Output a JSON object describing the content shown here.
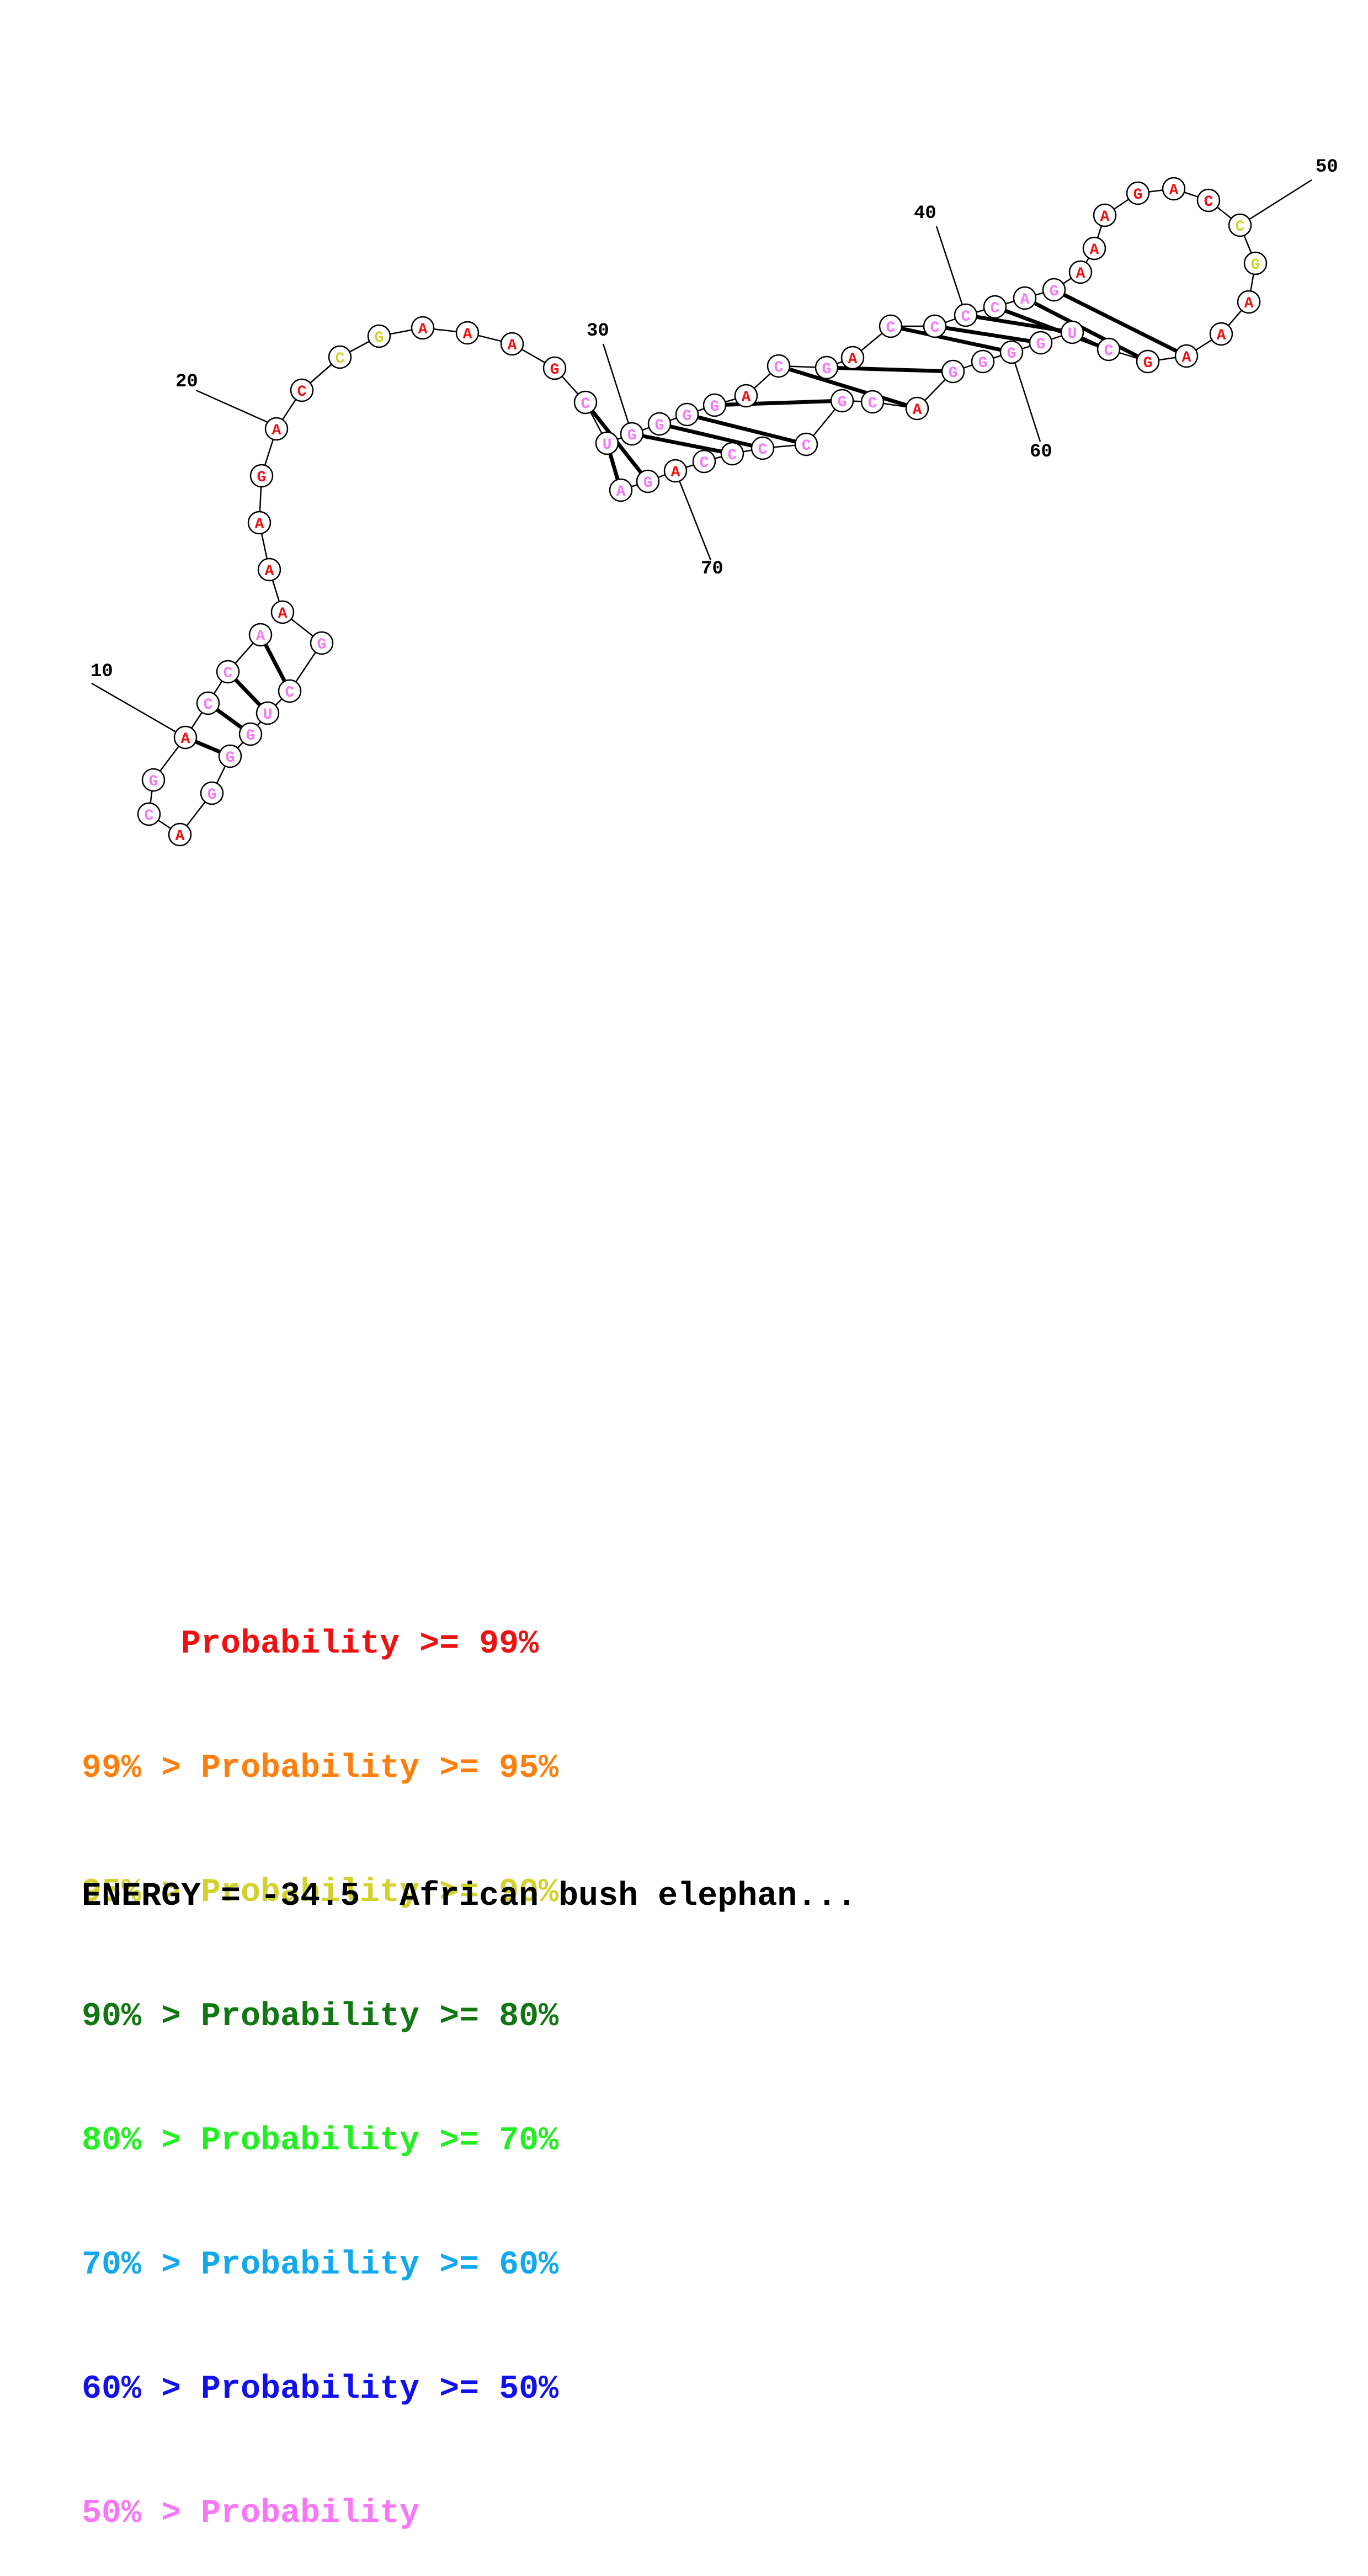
{
  "structure": {
    "nucleotides": [
      {
        "n": 7,
        "base": "A",
        "color": "#f777f7"
      },
      {
        "n": 8,
        "base": "C",
        "color": "#f777f7"
      },
      {
        "n": 9,
        "base": "C",
        "color": "#f777f7"
      },
      {
        "n": 10,
        "base": "A",
        "color": "#ee1111"
      },
      {
        "n": 11,
        "base": "G",
        "color": "#f777f7"
      },
      {
        "n": 12,
        "base": "C",
        "color": "#f777f7"
      },
      {
        "n": 13,
        "base": "A",
        "color": "#ee1111"
      },
      {
        "n": 14,
        "base": "G",
        "color": "#f777f7"
      },
      {
        "n": 15,
        "base": "G",
        "color": "#f777f7"
      },
      {
        "n": 16,
        "base": "G",
        "color": "#f777f7"
      },
      {
        "n": 17,
        "base": "U",
        "color": "#f777f7"
      },
      {
        "n": 18,
        "base": "C",
        "color": "#f777f7"
      },
      {
        "n": 19,
        "base": "G",
        "color": "#f777f7"
      },
      {
        "n": 20,
        "base": "A",
        "color": "#ee1111"
      },
      {
        "n": 21,
        "base": "A",
        "color": "#ee1111"
      },
      {
        "n": 22,
        "base": "A",
        "color": "#ee1111"
      },
      {
        "n": 23,
        "base": "G",
        "color": "#ee1111"
      },
      {
        "n": 24,
        "base": "A",
        "color": "#ee1111"
      },
      {
        "n": 25,
        "base": "C",
        "color": "#ee1111"
      },
      {
        "n": 26,
        "base": "C",
        "color": "#d2d22a"
      },
      {
        "n": 27,
        "base": "G",
        "color": "#d2d22a"
      },
      {
        "n": 28,
        "base": "A",
        "color": "#ee1111"
      },
      {
        "n": 29,
        "base": "A",
        "color": "#ee1111"
      },
      {
        "n": 30,
        "base": "A",
        "color": "#ee1111"
      },
      {
        "n": 31,
        "base": "G",
        "color": "#ee1111"
      },
      {
        "n": 32,
        "base": "C",
        "color": "#f777f7"
      },
      {
        "n": 33,
        "base": "U",
        "color": "#f777f7"
      },
      {
        "n": 34,
        "base": "G",
        "color": "#f777f7"
      },
      {
        "n": 35,
        "base": "G",
        "color": "#f777f7"
      },
      {
        "n": 36,
        "base": "G",
        "color": "#f777f7"
      },
      {
        "n": 37,
        "base": "G",
        "color": "#f777f7"
      },
      {
        "n": 38,
        "base": "A",
        "color": "#ee1111"
      },
      {
        "n": 39,
        "base": "C",
        "color": "#f777f7"
      },
      {
        "n": 40,
        "base": "G",
        "color": "#f777f7"
      },
      {
        "n": 41,
        "base": "A",
        "color": "#ee1111"
      },
      {
        "n": 42,
        "base": "C",
        "color": "#f777f7"
      },
      {
        "n": 43,
        "base": "C",
        "color": "#f777f7"
      },
      {
        "n": 44,
        "base": "C",
        "color": "#f777f7"
      },
      {
        "n": 45,
        "base": "C",
        "color": "#f777f7"
      },
      {
        "n": 46,
        "base": "A",
        "color": "#f777f7"
      },
      {
        "n": 47,
        "base": "G",
        "color": "#f777f7"
      },
      {
        "n": 48,
        "base": "A",
        "color": "#ee1111"
      },
      {
        "n": 49,
        "base": "A",
        "color": "#ee1111"
      },
      {
        "n": 50,
        "base": "A",
        "color": "#ee1111"
      },
      {
        "n": 51,
        "base": "G",
        "color": "#ee1111"
      },
      {
        "n": 52,
        "base": "A",
        "color": "#ee1111"
      },
      {
        "n": 53,
        "base": "C",
        "color": "#ee1111"
      },
      {
        "n": 54,
        "base": "C",
        "color": "#d2d22a"
      },
      {
        "n": 55,
        "base": "G",
        "color": "#d2d22a"
      },
      {
        "n": 56,
        "base": "A",
        "color": "#ee1111"
      },
      {
        "n": 57,
        "base": "A",
        "color": "#ee1111"
      },
      {
        "n": 58,
        "base": "A",
        "color": "#ee1111"
      },
      {
        "n": 59,
        "base": "G",
        "color": "#ee1111"
      },
      {
        "n": 60,
        "base": "C",
        "color": "#f777f7"
      },
      {
        "n": 61,
        "base": "U",
        "color": "#f777f7"
      },
      {
        "n": 62,
        "base": "G",
        "color": "#f777f7"
      },
      {
        "n": 63,
        "base": "G",
        "color": "#f777f7"
      },
      {
        "n": 64,
        "base": "G",
        "color": "#f777f7"
      },
      {
        "n": 65,
        "base": "G",
        "color": "#f777f7"
      },
      {
        "n": 66,
        "base": "A",
        "color": "#ee1111"
      },
      {
        "n": 67,
        "base": "C",
        "color": "#f777f7"
      },
      {
        "n": 68,
        "base": "G",
        "color": "#f777f7"
      },
      {
        "n": 69,
        "base": "C",
        "color": "#f777f7"
      },
      {
        "n": 70,
        "base": "C",
        "color": "#f777f7"
      },
      {
        "n": 71,
        "base": "C",
        "color": "#f777f7"
      },
      {
        "n": 72,
        "base": "C",
        "color": "#f777f7"
      },
      {
        "n": 73,
        "base": "A",
        "color": "#ee1111"
      },
      {
        "n": 74,
        "base": "G",
        "color": "#f777f7"
      },
      {
        "n": 75,
        "base": "A",
        "color": "#f777f7"
      }
    ],
    "pairs": [
      [
        7,
        18
      ],
      [
        8,
        17
      ],
      [
        9,
        16
      ],
      [
        10,
        15
      ],
      [
        32,
        74
      ],
      [
        33,
        75
      ],
      [
        34,
        71
      ],
      [
        35,
        70
      ],
      [
        36,
        69
      ],
      [
        37,
        68
      ],
      [
        39,
        66
      ],
      [
        40,
        65
      ],
      [
        42,
        63
      ],
      [
        43,
        62
      ],
      [
        44,
        61
      ],
      [
        45,
        60
      ],
      [
        46,
        59
      ],
      [
        47,
        58
      ]
    ],
    "position_labels": [
      "10",
      "20",
      "30",
      "40",
      "50",
      "60",
      "70"
    ]
  },
  "legend": [
    {
      "text": "     Probability >= 99%",
      "color": "#ee1111"
    },
    {
      "text": "99% > Probability >= 95%",
      "color": "#ff7f0e"
    },
    {
      "text": "95% > Probability >= 90%",
      "color": "#d2d22a"
    },
    {
      "text": "90% > Probability >= 80%",
      "color": "#117711"
    },
    {
      "text": "80% > Probability >= 70%",
      "color": "#22ee22"
    },
    {
      "text": "70% > Probability >= 60%",
      "color": "#11a8ee"
    },
    {
      "text": "60% > Probability >= 50%",
      "color": "#1111ee"
    },
    {
      "text": "50% > Probability",
      "color": "#f777f7"
    }
  ],
  "energy_text": "ENERGY = -34.5  African bush elephan..."
}
